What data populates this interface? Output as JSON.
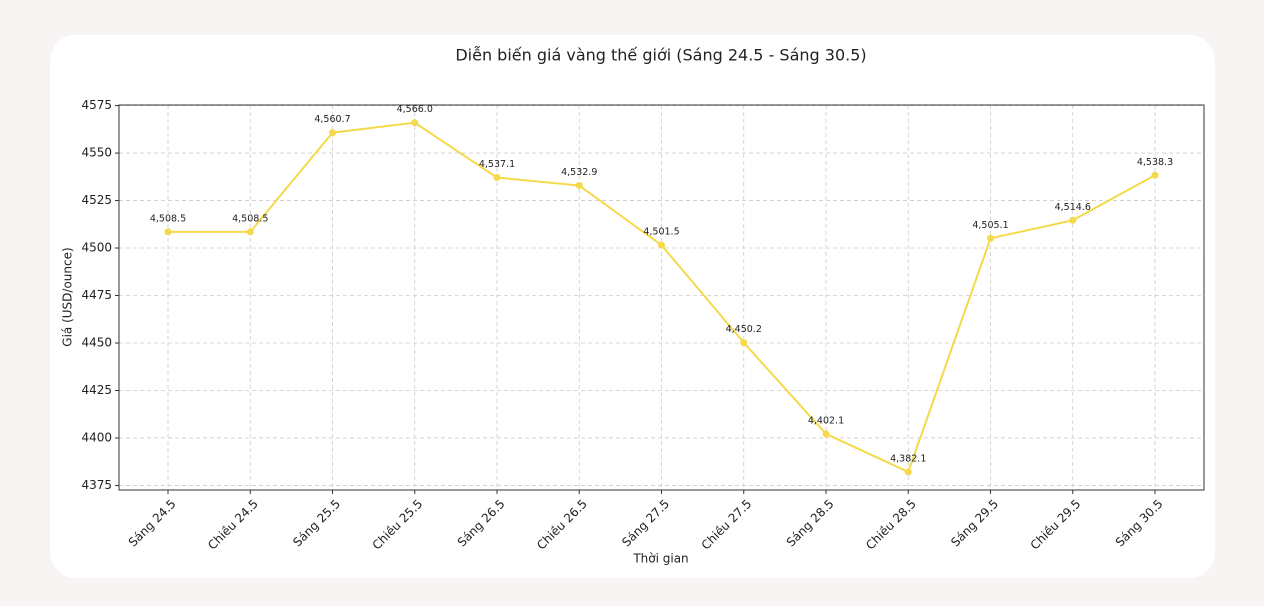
{
  "chart_data": {
    "type": "line",
    "title": "Diễn biến giá vàng thế giới (Sáng 24.5 - Sáng 30.5)",
    "x_label": "Thời gian",
    "y_label": "Giá (USD/ounce)",
    "categories": [
      "Sáng 24.5",
      "Chiều 24.5",
      "Sáng 25.5",
      "Chiều 25.5",
      "Sáng 26.5",
      "Chiều 26.5",
      "Sáng 27.5",
      "Chiều 27.5",
      "Sáng 28.5",
      "Chiều 28.5",
      "Sáng 29.5",
      "Chiều 29.5",
      "Sáng 30.5"
    ],
    "series": [
      {
        "color": "#f4d94a",
        "values": [
          4508.5,
          4508.5,
          4560.7,
          4566.0,
          4537.1,
          4532.9,
          4501.5,
          4450.2,
          4402.1,
          4382.1,
          4505.1,
          4514.6,
          4538.3
        ],
        "value_labels": [
          "4,508.5",
          "4,508.5",
          "4,560.7",
          "4,566.0",
          "4,537.1",
          "4,532.9",
          "4,501.5",
          "4,450.2",
          "4,402.1",
          "4,382.1",
          "4,505.1",
          "4,514.6",
          "4,538.3"
        ]
      }
    ],
    "ylim": [
      4372.6,
      4575.3
    ],
    "yticks": [
      4375,
      4400,
      4425,
      4450,
      4475,
      4500,
      4525,
      4550,
      4575
    ],
    "grid": true
  }
}
